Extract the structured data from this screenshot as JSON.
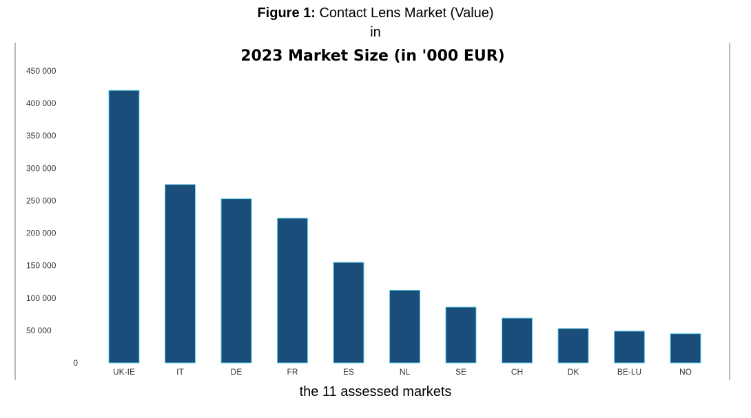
{
  "figure": {
    "label": "Figure 1:",
    "caption_part1": " Contact Lens Market (Value)",
    "caption_part2": "in",
    "caption_part3": "the 11 assessed markets"
  },
  "colors": {
    "bar": "#1b4d7a",
    "bar_edge": "#5fd3e6",
    "axis_text": "#333333"
  },
  "chart_data": {
    "type": "bar",
    "title": "2023 Market Size (in '000 EUR)",
    "xlabel": "",
    "ylabel": "",
    "categories": [
      "UK-IE",
      "IT",
      "DE",
      "FR",
      "ES",
      "NL",
      "SE",
      "CH",
      "DK",
      "BE-LU",
      "NO"
    ],
    "values": [
      420000,
      275000,
      253000,
      223000,
      155000,
      112000,
      86000,
      69000,
      53000,
      49000,
      45000
    ],
    "ylim": [
      0,
      450000
    ],
    "yticks": [
      0,
      50000,
      100000,
      150000,
      200000,
      250000,
      300000,
      350000,
      400000,
      450000
    ],
    "ytick_labels": [
      "0",
      "50 000",
      "100 000",
      "150 000",
      "200 000",
      "250 000",
      "300 000",
      "350 000",
      "400 000",
      "450 000"
    ],
    "grid": false,
    "legend": "none"
  }
}
